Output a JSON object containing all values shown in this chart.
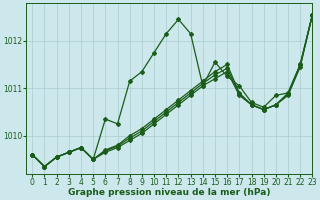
{
  "title": "Graphe pression niveau de la mer (hPa)",
  "background_color": "#cce8ec",
  "grid_color": "#aacccc",
  "line_color": "#1a5c1a",
  "xlim": [
    -0.5,
    23
  ],
  "ylim": [
    1009.2,
    1012.8
  ],
  "yticks": [
    1010,
    1011,
    1012
  ],
  "xticks": [
    0,
    1,
    2,
    3,
    4,
    5,
    6,
    7,
    8,
    9,
    10,
    11,
    12,
    13,
    14,
    15,
    16,
    17,
    18,
    19,
    20,
    21,
    22,
    23
  ],
  "series": [
    {
      "x": [
        0,
        1,
        2,
        3,
        4,
        5,
        6,
        7,
        8,
        9,
        10,
        11,
        12,
        13,
        14,
        15,
        16,
        17,
        18,
        19,
        20,
        21,
        22,
        23
      ],
      "y": [
        1009.6,
        1009.35,
        1009.55,
        1009.65,
        1009.75,
        1009.5,
        1010.35,
        1010.25,
        1011.15,
        1011.35,
        1011.75,
        1012.15,
        1012.45,
        1012.15,
        1011.05,
        1011.55,
        1011.25,
        1011.05,
        1010.7,
        1010.6,
        1010.85,
        1010.9,
        1011.5,
        1012.55
      ]
    },
    {
      "x": [
        0,
        1,
        2,
        3,
        4,
        5,
        6,
        7,
        8,
        9,
        10,
        11,
        12,
        13,
        14,
        15,
        16,
        17,
        18,
        19,
        20,
        21,
        22,
        23
      ],
      "y": [
        1009.6,
        1009.35,
        1009.55,
        1009.65,
        1009.75,
        1009.5,
        1009.65,
        1009.75,
        1009.9,
        1010.05,
        1010.25,
        1010.45,
        1010.65,
        1010.85,
        1011.05,
        1011.2,
        1011.35,
        1010.85,
        1010.65,
        1010.55,
        1010.65,
        1010.85,
        1011.45,
        1012.55
      ]
    },
    {
      "x": [
        0,
        1,
        2,
        3,
        4,
        5,
        6,
        7,
        8,
        9,
        10,
        11,
        12,
        13,
        14,
        15,
        16,
        17,
        18,
        19,
        20,
        21,
        22,
        23
      ],
      "y": [
        1009.6,
        1009.35,
        1009.55,
        1009.65,
        1009.75,
        1009.5,
        1009.7,
        1009.8,
        1010.0,
        1010.15,
        1010.35,
        1010.55,
        1010.75,
        1010.95,
        1011.15,
        1011.35,
        1011.5,
        1010.9,
        1010.65,
        1010.55,
        1010.65,
        1010.9,
        1011.5,
        1012.55
      ]
    },
    {
      "x": [
        0,
        1,
        2,
        3,
        4,
        5,
        6,
        7,
        8,
        9,
        10,
        11,
        12,
        13,
        14,
        15,
        16,
        17,
        18,
        19,
        20,
        21,
        22,
        23
      ],
      "y": [
        1009.6,
        1009.35,
        1009.55,
        1009.65,
        1009.75,
        1009.5,
        1009.68,
        1009.78,
        1009.95,
        1010.1,
        1010.3,
        1010.5,
        1010.7,
        1010.9,
        1011.1,
        1011.28,
        1011.42,
        1010.88,
        1010.65,
        1010.55,
        1010.65,
        1010.88,
        1011.48,
        1012.55
      ]
    }
  ],
  "marker": "D",
  "marker_size": 2.0,
  "line_width": 0.9,
  "font_size_label": 6.5,
  "font_size_tick": 5.5
}
